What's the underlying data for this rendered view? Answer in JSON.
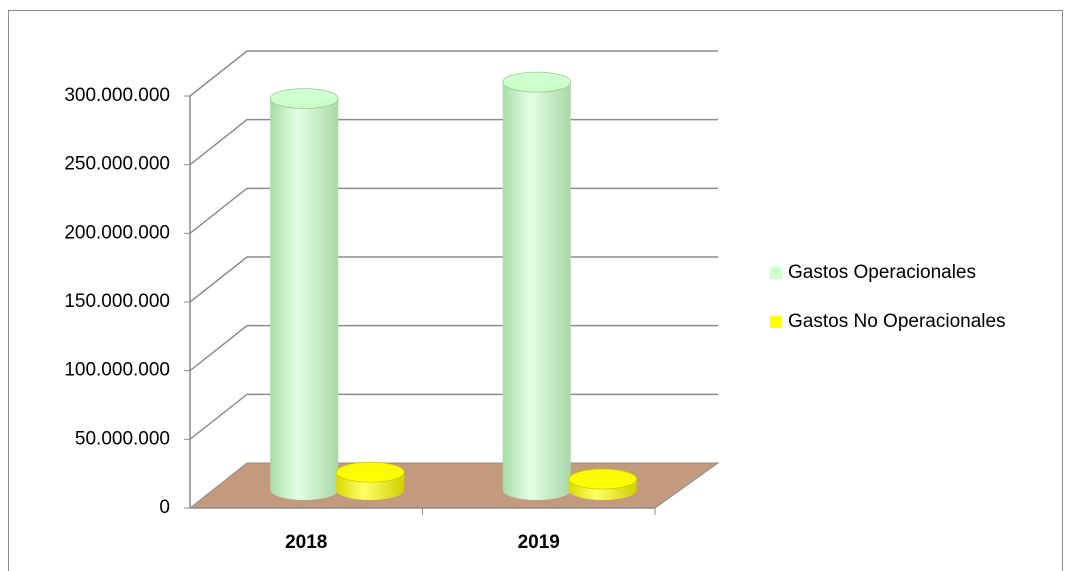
{
  "chart_data": {
    "type": "bar3d",
    "categories": [
      "2018",
      "2019"
    ],
    "series": [
      {
        "name": "Gastos Operacionales",
        "color": "#ccffcc",
        "values": [
          285000000,
          297000000
        ]
      },
      {
        "name": "Gastos No Operacionales",
        "color": "#ffff00",
        "values": [
          13000000,
          8000000
        ]
      }
    ],
    "ylim": [
      0,
      300000000
    ],
    "yticks": [
      0,
      {
        "value": 50000000,
        "label": "50.000.000"
      },
      {
        "value": 100000000,
        "label": "100.000.000"
      },
      {
        "value": 150000000,
        "label": "150.000.000"
      },
      {
        "value": 200000000,
        "label": "200.000.000"
      },
      {
        "value": 250000000,
        "label": "250.000.000"
      },
      {
        "value": 300000000,
        "label": "300.000.000"
      }
    ],
    "grid": true,
    "legend": "right"
  }
}
